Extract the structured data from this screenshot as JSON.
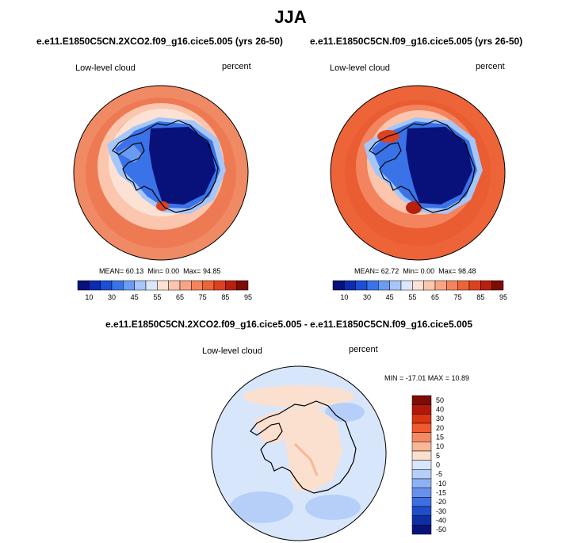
{
  "title": "JJA",
  "panels": [
    {
      "case": "e.e11.E1850C5CN.2XCO2.f09_g16.cice5.005 (yrs 26-50)",
      "variable": "Low-level cloud",
      "units": "percent",
      "stats": {
        "mean_label": "MEAN=",
        "mean": "60.13",
        "min_label": "Min=",
        "min": "0.00",
        "max_label": "Max=",
        "max": "94.85"
      }
    },
    {
      "case": "e.e11.E1850C5CN.f09_g16.cice5.005 (yrs 26-50)",
      "variable": "Low-level cloud",
      "units": "percent",
      "stats": {
        "mean_label": "MEAN=",
        "mean": "62.72",
        "min_label": "Min=",
        "min": "0.00",
        "max_label": "Max=",
        "max": "98.48"
      }
    }
  ],
  "diff": {
    "case": "e.e11.E1850C5CN.2XCO2.f09_g16.cice5.005 - e.e11.E1850C5CN.f09_g16.cice5.005",
    "variable": "Low-level cloud",
    "units": "percent",
    "minmax": "MIN = -17.01 MAX =  10.89"
  },
  "chart_data": [
    {
      "type": "heatmap",
      "projection": "south polar stereographic",
      "title": "e.e11.E1850C5CN.2XCO2.f09_g16.cice5.005 (yrs 26-50)",
      "field": "Low-level cloud",
      "units": "percent",
      "mean": 60.13,
      "min": 0.0,
      "max": 94.85,
      "colorbar_levels": [
        10,
        20,
        30,
        40,
        45,
        50,
        55,
        60,
        65,
        70,
        75,
        80,
        85,
        90,
        95
      ],
      "colorbar_labels": [
        "10",
        "30",
        "45",
        "55",
        "65",
        "75",
        "85",
        "95"
      ]
    },
    {
      "type": "heatmap",
      "projection": "south polar stereographic",
      "title": "e.e11.E1850C5CN.f09_g16.cice5.005 (yrs 26-50)",
      "field": "Low-level cloud",
      "units": "percent",
      "mean": 62.72,
      "min": 0.0,
      "max": 98.48,
      "colorbar_levels": [
        10,
        20,
        30,
        40,
        45,
        50,
        55,
        60,
        65,
        70,
        75,
        80,
        85,
        90,
        95
      ],
      "colorbar_labels": [
        "10",
        "30",
        "45",
        "55",
        "65",
        "75",
        "85",
        "95"
      ]
    },
    {
      "type": "heatmap",
      "projection": "south polar stereographic",
      "title": "e.e11.E1850C5CN.2XCO2.f09_g16.cice5.005 - e.e11.E1850C5CN.f09_g16.cice5.005",
      "field": "Low-level cloud",
      "units": "percent",
      "min": -17.01,
      "max": 10.89,
      "colorbar_levels": [
        50,
        40,
        30,
        20,
        15,
        10,
        5,
        0,
        -5,
        -10,
        -15,
        -20,
        -30,
        -40,
        -50
      ],
      "colorbar_labels": [
        "50",
        "40",
        "30",
        "20",
        "15",
        "10",
        "5",
        "0",
        "-5",
        "-10",
        "-15",
        "-20",
        "-30",
        "-40",
        "-50"
      ]
    }
  ],
  "colors": {
    "abs_scale": [
      "#08107a",
      "#0b2bb0",
      "#1a4fd6",
      "#3a72e8",
      "#6b9bf2",
      "#a6c6f8",
      "#dbe8fb",
      "#fbe2d4",
      "#fbc6ad",
      "#f8a585",
      "#f4845e",
      "#ec6438",
      "#dc4220",
      "#b8200e",
      "#7d0c04"
    ],
    "diff_scale": [
      "#7d0c04",
      "#b3170a",
      "#d93414",
      "#ef5a2e",
      "#f58a62",
      "#f8b796",
      "#fbe0cf",
      "#d8e6fb",
      "#b6cff8",
      "#8db2f3",
      "#6891ec",
      "#3d6ee2",
      "#1f4ccb",
      "#0f2ea6",
      "#06147a"
    ],
    "coast": "#000000"
  }
}
